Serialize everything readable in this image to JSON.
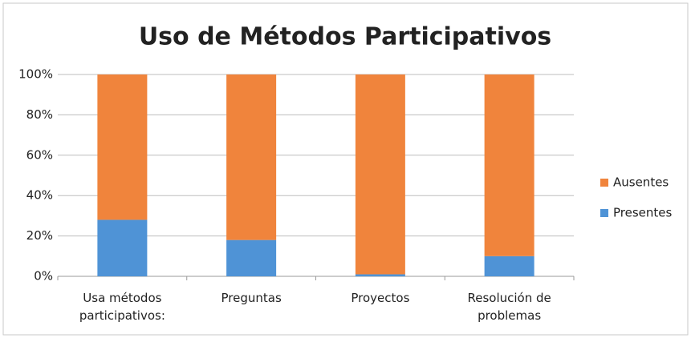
{
  "chart_data": {
    "type": "stacked_bar",
    "title": "Uso de Métodos Participativos",
    "categories": [
      "Usa métodos participativos:",
      "Preguntas",
      "Proyectos",
      "Resolución de problemas"
    ],
    "series": [
      {
        "name": "Presentes",
        "color": "#4f93d6",
        "values": [
          28,
          18,
          1,
          10
        ]
      },
      {
        "name": "Ausentes",
        "color": "#f0843c",
        "values": [
          72,
          82,
          99,
          90
        ]
      }
    ],
    "ylim": [
      0,
      100
    ],
    "yticks": [
      {
        "value": 0,
        "label": "0%"
      },
      {
        "value": 20,
        "label": "20%"
      },
      {
        "value": 40,
        "label": "40%"
      },
      {
        "value": 60,
        "label": "60%"
      },
      {
        "value": 80,
        "label": "80%"
      },
      {
        "value": 100,
        "label": "100%"
      }
    ],
    "grid": true,
    "legend": "right"
  }
}
